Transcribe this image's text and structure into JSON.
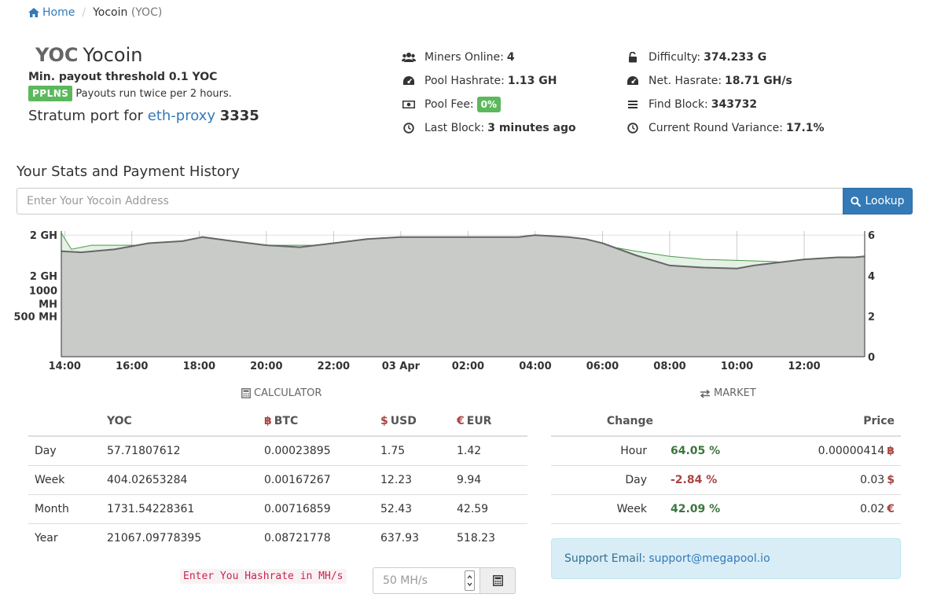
{
  "breadcrumb": {
    "home": "Home",
    "current_name": "Yocoin",
    "current_symbol": "(YOC)"
  },
  "coin": {
    "symbol": "YOC",
    "name": "Yocoin",
    "threshold": "Min. payout threshold 0.1 YOC",
    "scheme_badge": "PPLNS",
    "payout_note": "Payouts run twice per 2 hours.",
    "stratum_prefix": "Stratum port for",
    "stratum_link": "eth-proxy",
    "stratum_port": "3335"
  },
  "stats": {
    "miners_online": {
      "label": "Miners Online:",
      "value": "4",
      "icon": "users-icon"
    },
    "pool_hashrate": {
      "label": "Pool Hashrate:",
      "value": "1.13 GH",
      "icon": "dashboard-icon"
    },
    "pool_fee": {
      "label": "Pool Fee:",
      "value": "0%",
      "icon": "money-icon"
    },
    "last_block": {
      "label": "Last Block:",
      "value": "3 minutes ago",
      "icon": "clock-icon"
    },
    "difficulty": {
      "label": "Difficulty:",
      "value": "374.233 G",
      "icon": "unlock-icon"
    },
    "net_hashrate": {
      "label": "Net. Hasrate:",
      "value": "18.71 GH/s",
      "icon": "dashboard-icon"
    },
    "find_block": {
      "label": "Find Block:",
      "value": "343732",
      "icon": "bars-icon"
    },
    "round_variance": {
      "label": "Current Round Variance:",
      "value": "17.1%",
      "icon": "clock-icon"
    }
  },
  "lookup": {
    "title": "Your Stats and Payment History",
    "placeholder": "Enter Your Yocoin Address",
    "button": "Lookup"
  },
  "chart_data": {
    "type": "area",
    "x_ticks": [
      "14:00",
      "16:00",
      "18:00",
      "20:00",
      "22:00",
      "03 Apr",
      "02:00",
      "04:00",
      "06:00",
      "08:00",
      "10:00",
      "12:00"
    ],
    "x_range_hours": [
      13.9,
      37.8
    ],
    "y_left_ticks": [
      "2 GH",
      "2 GH",
      "1000 MH",
      "500 MH"
    ],
    "y_right_ticks": [
      "0",
      "2",
      "4",
      "6"
    ],
    "y_right_range": [
      0,
      6.2
    ],
    "grid": true,
    "series": [
      {
        "color": "#666666",
        "fill": "#c8cbc8",
        "axis": "right",
        "x": [
          13.9,
          14.5,
          15.5,
          16.5,
          17.5,
          18.1,
          19.0,
          20.0,
          21.0,
          22.0,
          23.0,
          24.0,
          25.0,
          26.0,
          27.0,
          27.5,
          28.0,
          29.0,
          29.5,
          30.0,
          31.0,
          32.0,
          33.0,
          34.0,
          34.5,
          35.0,
          36.0,
          37.0,
          37.5,
          37.8
        ],
        "y": [
          5.2,
          5.15,
          5.3,
          5.6,
          5.7,
          5.9,
          5.7,
          5.5,
          5.4,
          5.6,
          5.8,
          5.9,
          5.9,
          5.9,
          5.9,
          5.9,
          6.0,
          5.9,
          5.8,
          5.6,
          5.0,
          4.5,
          4.4,
          4.35,
          4.5,
          4.6,
          4.8,
          4.9,
          4.9,
          4.95
        ]
      },
      {
        "color": "#4a9a4a",
        "fill": "#e4f1e4",
        "axis": "right",
        "x": [
          13.9,
          14.2,
          14.8,
          16.0,
          17.0,
          18.0,
          20.0,
          22.0,
          24.0,
          26.0,
          28.0,
          30.0,
          31.0,
          32.0,
          33.0,
          34.0,
          35.0,
          36.0,
          37.0,
          37.8
        ],
        "y": [
          6.1,
          5.3,
          5.5,
          5.5,
          5.5,
          5.55,
          5.5,
          5.5,
          5.55,
          5.5,
          5.5,
          5.5,
          5.2,
          4.95,
          4.8,
          4.75,
          4.7,
          4.6,
          4.6,
          4.6
        ]
      }
    ]
  },
  "calculator": {
    "title": "CALCULATOR",
    "headers": {
      "period": "",
      "yoc": "YOC",
      "btc": "BTC",
      "usd": "USD",
      "eur": "EUR"
    },
    "currency_symbols": {
      "btc": "฿",
      "usd": "$",
      "eur": "€"
    },
    "rows": [
      {
        "period": "Day",
        "yoc": "57.71807612",
        "btc": "0.00023895",
        "usd": "1.75",
        "eur": "1.42"
      },
      {
        "period": "Week",
        "yoc": "404.02653284",
        "btc": "0.00167267",
        "usd": "12.23",
        "eur": "9.94"
      },
      {
        "period": "Month",
        "yoc": "1731.54228361",
        "btc": "0.00716859",
        "usd": "52.43",
        "eur": "42.59"
      },
      {
        "period": "Year",
        "yoc": "21067.09778395",
        "btc": "0.08721778",
        "usd": "637.93",
        "eur": "518.23"
      }
    ],
    "hashrate_label": "Enter You Hashrate in MH/s",
    "hashrate_placeholder": "50 MH/s"
  },
  "market": {
    "title": "MARKET",
    "headers": {
      "change": "Change",
      "price": "Price"
    },
    "rows": [
      {
        "period": "Hour",
        "change": "64.05 %",
        "trend": "up",
        "price": "0.00000414",
        "cur": "฿"
      },
      {
        "period": "Day",
        "change": "-2.84 %",
        "trend": "down",
        "price": "0.03",
        "cur": "$"
      },
      {
        "period": "Week",
        "change": "42.09 %",
        "trend": "up",
        "price": "0.02",
        "cur": "€"
      }
    ]
  },
  "support": {
    "label": "Support Email:",
    "email": "support@megapool.io"
  },
  "colors": {
    "link": "#337ab7",
    "success": "#5cb85c",
    "positive": "#3c763d",
    "negative": "#a94442",
    "info_bg": "#d9edf7"
  }
}
